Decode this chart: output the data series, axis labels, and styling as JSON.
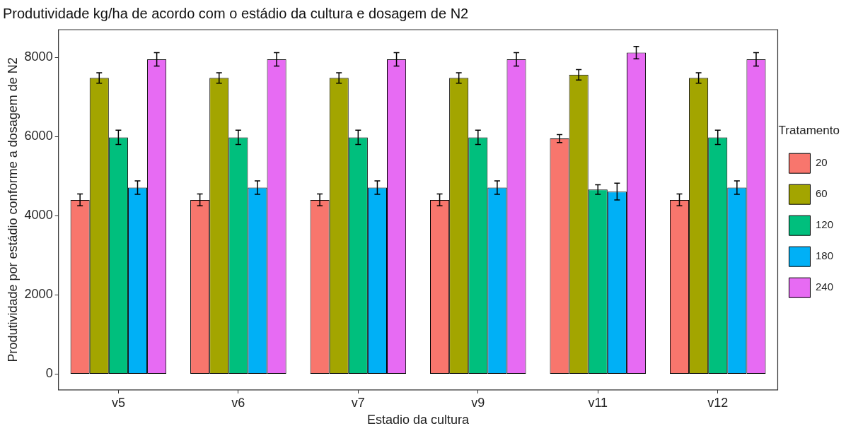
{
  "chart_data": {
    "type": "bar",
    "title": "Produtividade kg/ha de acordo com o estádio da cultura e dosagem de N2",
    "xlabel": "Estadio da cultura",
    "ylabel": "Produtividade por estádio conforme a dosagem de N2",
    "legend_title": "Tratamento",
    "legend": "right",
    "grid": false,
    "categories": [
      "v5",
      "v6",
      "v7",
      "v9",
      "v11",
      "v12"
    ],
    "ylim": [
      -400,
      8700
    ],
    "yticks": [
      0,
      2000,
      4000,
      6000,
      8000
    ],
    "series": [
      {
        "name": "20",
        "color": "#f8766d",
        "values": [
          4400,
          4400,
          4400,
          4400,
          5950,
          4400
        ],
        "errors": [
          150,
          150,
          150,
          150,
          100,
          150
        ]
      },
      {
        "name": "60",
        "color": "#a3a500",
        "values": [
          7480,
          7480,
          7480,
          7480,
          7560,
          7480
        ],
        "errors": [
          130,
          130,
          130,
          130,
          130,
          130
        ]
      },
      {
        "name": "120",
        "color": "#00bf7d",
        "values": [
          5980,
          5980,
          5980,
          5980,
          4660,
          5980
        ],
        "errors": [
          180,
          180,
          180,
          180,
          120,
          180
        ]
      },
      {
        "name": "180",
        "color": "#00b0f6",
        "values": [
          4710,
          4710,
          4710,
          4710,
          4610,
          4710
        ],
        "errors": [
          170,
          170,
          170,
          170,
          210,
          170
        ]
      },
      {
        "name": "240",
        "color": "#e76bf3",
        "values": [
          7950,
          7950,
          7950,
          7950,
          8120,
          7950
        ],
        "errors": [
          170,
          170,
          170,
          170,
          155,
          170
        ]
      }
    ]
  }
}
